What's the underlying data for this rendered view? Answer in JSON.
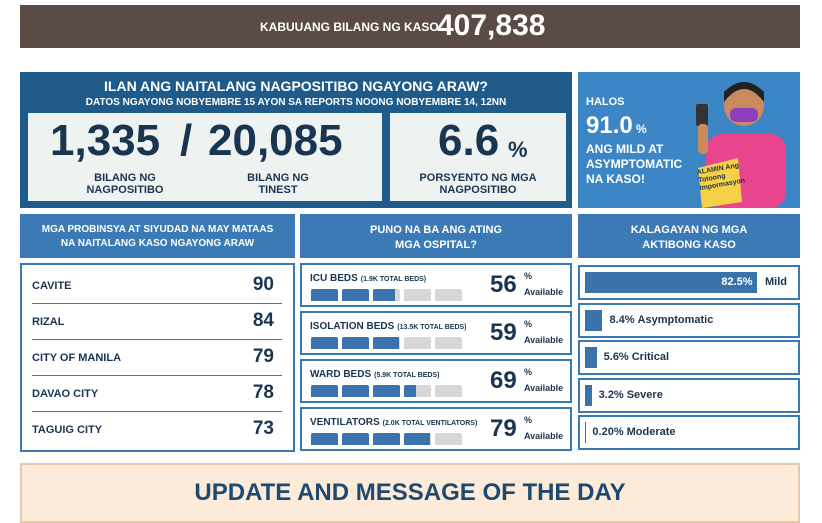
{
  "header": {
    "label": "KABUUANG BILANG NG KASO",
    "total": "407,838"
  },
  "today": {
    "title": "ILAN ANG NAITALANG NAGPOSITIBO NGAYONG ARAW?",
    "subtitle": "DATOS NGAYONG NOBYEMBRE 15 AYON SA REPORTS NOONG NOBYEMBRE 14, 12NN",
    "positive": "1,335",
    "separator": "/",
    "tested": "20,085",
    "positive_label": "BILANG NG NAGPOSITIBO",
    "tested_label": "BILANG NG TINEST",
    "rate": "6.6",
    "rate_unit": "%",
    "rate_label": "PORSYENTO NG MGA NAGPOSITIBO"
  },
  "promo": {
    "lead": "HALOS",
    "value": "91.0",
    "unit": "%",
    "text": "ANG MILD AT ASYMPTOMATIC NA KASO!",
    "badge": "ALAMIN Ang Totoong Impormasyon"
  },
  "provinces": {
    "title": "MGA PROBINSYA AT SIYUDAD NA MAY MATAAS NA NAITALANG KASO NGAYONG ARAW",
    "rows": [
      {
        "name": "CAVITE",
        "cases": "90"
      },
      {
        "name": "RIZAL",
        "cases": "84"
      },
      {
        "name": "CITY OF MANILA",
        "cases": "79"
      },
      {
        "name": "DAVAO CITY",
        "cases": "78"
      },
      {
        "name": "TAGUIG CITY",
        "cases": "73"
      }
    ]
  },
  "hospitals": {
    "title": "PUNO NA BA ANG ATING MGA OSPITAL?",
    "unit": "%",
    "available": "Available",
    "items": [
      {
        "name": "ICU BEDS",
        "total": "(1.9K TOTAL BEDS)",
        "value": 56
      },
      {
        "name": "ISOLATION BEDS",
        "total": "(13.5K TOTAL BEDS)",
        "value": 59
      },
      {
        "name": "WARD BEDS",
        "total": "(5.9K TOTAL BEDS)",
        "value": 69
      },
      {
        "name": "VENTILATORS",
        "total": "(2.0K TOTAL VENTILATORS)",
        "value": 79
      }
    ]
  },
  "status": {
    "title": "KALAGAYAN NG MGA AKTIBONG KASO",
    "items": [
      {
        "value": 82.5,
        "label": "82.5%",
        "name": "Mild"
      },
      {
        "value": 8.4,
        "label": "8.4%",
        "name": "Asymptomatic"
      },
      {
        "value": 5.6,
        "label": "5.6%",
        "name": "Critical"
      },
      {
        "value": 3.2,
        "label": "3.2%",
        "name": "Severe"
      },
      {
        "value": 0.2,
        "label": "0.20%",
        "name": "Moderate"
      }
    ]
  },
  "footer": {
    "title": "UPDATE AND MESSAGE OF THE DAY"
  }
}
